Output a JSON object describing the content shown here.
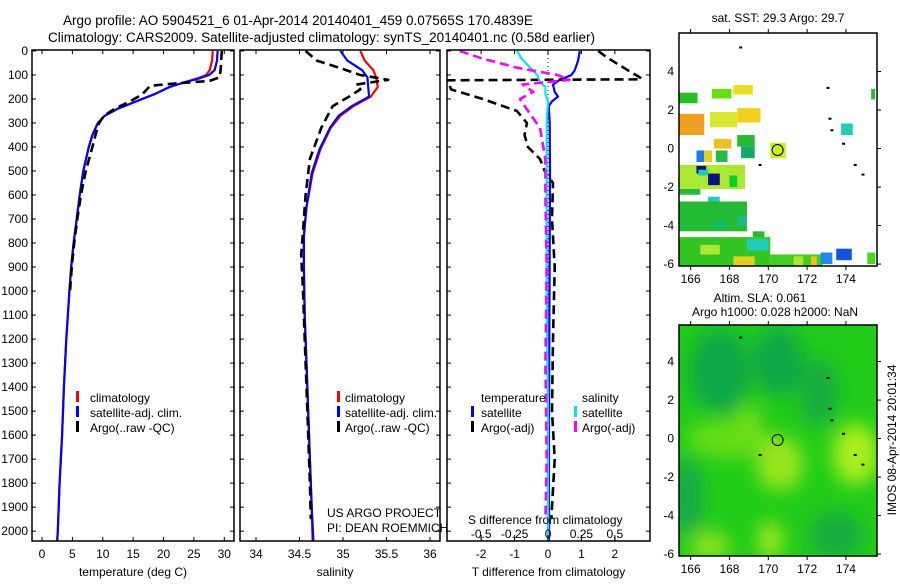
{
  "header": {
    "title_line1": "Argo profile: AO 5904521_6 01-Apr-2014 20140401_459 0.07565S 170.4839E",
    "title_line2": "Climatology: CARS2009. Satellite-adjusted climatology: synTS_20140401.nc (0.58d earlier)"
  },
  "footer_stamp": "IMOS 08-Apr-2014 20:01:34",
  "colors": {
    "climatology": "#ff0000",
    "satellite": "#0000ff",
    "argo": "#000000",
    "sal_satellite": "#00e5ee",
    "sal_argo": "#ff00ff"
  },
  "chart_data": [
    {
      "type": "line",
      "id": "temperature",
      "xlabel": "temperature (deg C)",
      "ylabel": "",
      "xlim": [
        -1.65,
        31.6
      ],
      "ylim": [
        2041,
        -4
      ],
      "xticks": [
        "0",
        "5",
        "10",
        "15",
        "20",
        "25",
        "30"
      ],
      "xtick_values": [
        0,
        5,
        10,
        15,
        20,
        25,
        30
      ],
      "yticks": [
        "0",
        "100",
        "200",
        "300",
        "400",
        "500",
        "600",
        "700",
        "800",
        "900",
        "1000",
        "1100",
        "1200",
        "1300",
        "1400",
        "1500",
        "1600",
        "1700",
        "1800",
        "1900",
        "2000"
      ],
      "legend": [
        "climatology",
        "satellite-adj. clim.",
        "Argo(..raw -QC)"
      ],
      "series": [
        {
          "name": "climatology",
          "color": "#ff0000",
          "dash": false,
          "depth": [
            0,
            40,
            80,
            100,
            115,
            130,
            150,
            180,
            210,
            240,
            270,
            300,
            350,
            400,
            500,
            600,
            700,
            800,
            900,
            1000,
            1200,
            1400,
            1600,
            1800,
            2000,
            2040
          ],
          "values": [
            28.1,
            28.0,
            27.6,
            27.0,
            25.5,
            23.5,
            21.0,
            18.5,
            15.5,
            12.5,
            10.3,
            9.2,
            8.3,
            7.7,
            6.8,
            6.2,
            5.7,
            5.2,
            4.8,
            4.5,
            4.0,
            3.6,
            3.3,
            2.9,
            2.6,
            2.5
          ]
        },
        {
          "name": "satellite-adj. clim.",
          "color": "#0000ff",
          "dash": false,
          "depth": [
            0,
            40,
            80,
            100,
            115,
            130,
            150,
            180,
            210,
            240,
            270,
            300,
            350,
            400,
            500,
            600,
            700,
            800,
            900,
            1000,
            1200,
            1400,
            1600,
            1800,
            2000,
            2040
          ],
          "values": [
            28.9,
            28.8,
            28.4,
            27.5,
            25.8,
            23.5,
            21.0,
            18.5,
            15.5,
            12.5,
            10.3,
            9.2,
            8.3,
            7.7,
            6.8,
            6.2,
            5.7,
            5.2,
            4.8,
            4.5,
            4.0,
            3.6,
            3.3,
            2.9,
            2.6,
            2.5
          ]
        },
        {
          "name": "Argo(..raw -QC)",
          "color": "#000000",
          "dash": true,
          "depth": [
            0,
            40,
            80,
            110,
            125,
            135,
            145,
            180,
            210,
            240,
            270,
            300,
            350,
            400,
            500,
            600,
            700,
            800,
            900,
            1000
          ],
          "values": [
            29.6,
            29.5,
            29.4,
            29.2,
            27.5,
            22.0,
            17.8,
            16.5,
            14.5,
            12.0,
            10.2,
            9.4,
            8.8,
            8.3,
            7.2,
            6.4,
            5.8,
            5.3,
            4.9,
            4.6
          ]
        }
      ]
    },
    {
      "type": "line",
      "id": "salinity",
      "xlabel": "salinity",
      "xlim": [
        33.816,
        36.115
      ],
      "ylim": [
        2041,
        -4
      ],
      "xticks": [
        "34",
        "34.5",
        "35",
        "35.5",
        "36"
      ],
      "xtick_values": [
        34,
        34.5,
        35,
        35.5,
        36
      ],
      "legend": [
        "climatology",
        "satellite-adj. clim.",
        "Argo(..raw -QC)"
      ],
      "annotation": [
        "US ARGO PROJECT",
        "PI: DEAN ROEMMICH"
      ],
      "series": [
        {
          "name": "climatology",
          "color": "#ff0000",
          "dash": false,
          "depth": [
            0,
            40,
            80,
            110,
            150,
            190,
            230,
            270,
            320,
            410,
            510,
            650,
            770,
            900,
            1100,
            1300,
            1500,
            1700,
            1900,
            2040
          ],
          "values": [
            35.2,
            35.25,
            35.35,
            35.38,
            35.4,
            35.32,
            35.12,
            34.97,
            34.86,
            34.74,
            34.65,
            34.58,
            34.55,
            34.55,
            34.56,
            34.58,
            34.6,
            34.62,
            34.64,
            34.65
          ]
        },
        {
          "name": "satellite-adj. clim.",
          "color": "#0000ff",
          "dash": false,
          "depth": [
            0,
            40,
            80,
            110,
            150,
            190,
            230,
            270,
            320,
            410,
            510,
            650,
            770,
            900,
            1100,
            1300,
            1500,
            1700,
            1900,
            2040
          ],
          "values": [
            34.97,
            35.05,
            35.22,
            35.28,
            35.29,
            35.3,
            35.1,
            34.95,
            34.85,
            34.73,
            34.64,
            34.58,
            34.55,
            34.55,
            34.56,
            34.58,
            34.6,
            34.62,
            34.64,
            34.66
          ]
        },
        {
          "name": "Argo(..raw -QC)",
          "color": "#000000",
          "dash": true,
          "depth": [
            0,
            40,
            72,
            100,
            120,
            140,
            160,
            190,
            230,
            320,
            450,
            600,
            700,
            850,
            1000,
            1200,
            1400,
            1600,
            1800,
            1950
          ],
          "values": [
            34.57,
            34.7,
            34.97,
            35.2,
            35.52,
            35.15,
            35.2,
            35.07,
            34.88,
            34.75,
            34.62,
            34.57,
            34.55,
            34.52,
            34.54,
            34.56,
            34.58,
            34.6,
            34.62,
            34.63
          ]
        }
      ]
    },
    {
      "type": "line",
      "id": "difference",
      "xlabel": "T difference from climatology",
      "xlabel_secondary": "S difference from climatology",
      "xlim": [
        -3.02,
        3.05
      ],
      "xlim_secondary": [
        -0.756,
        0.763
      ],
      "ylim": [
        2041,
        -4
      ],
      "xticks": [
        "-2",
        "-1",
        "0",
        "1",
        "2"
      ],
      "xtick_values": [
        -2,
        -1,
        0,
        1,
        2
      ],
      "xticks_secondary": [
        "-0.5",
        "-0.25",
        "0",
        "0.25",
        "0.5"
      ],
      "xtick_values_secondary": [
        -0.5,
        -0.25,
        0,
        0.25,
        0.5
      ],
      "legend_temperature": {
        "title": "temperature",
        "items": [
          "satellite",
          "Argo(-adj)"
        ]
      },
      "legend_salinity": {
        "title": "salinity",
        "items": [
          "satellite",
          "Argo(-adj)"
        ]
      },
      "series": [
        {
          "name": "T satellite",
          "axis": "T",
          "color": "#0000ff",
          "dash": false,
          "depth": [
            0,
            40,
            80,
            100,
            120,
            140,
            170,
            190,
            210,
            230,
            300,
            500,
            800,
            1200,
            1600,
            2040
          ],
          "values": [
            0.95,
            0.9,
            0.8,
            0.7,
            0.35,
            0.15,
            0.2,
            0.3,
            0.12,
            0.02,
            0.05,
            0.06,
            0.05,
            0.04,
            0.03,
            0.03
          ]
        },
        {
          "name": "T Argo(-adj)",
          "axis": "T",
          "color": "#000000",
          "dash": true,
          "depth": [
            0,
            30,
            60,
            90,
            110,
            118,
            122,
            140,
            160,
            200,
            250,
            300,
            350,
            400,
            450,
            500,
            550,
            700,
            900,
            1200,
            1500,
            1700,
            1950
          ],
          "values": [
            1.5,
            1.8,
            2.15,
            2.5,
            2.75,
            2.8,
            -3.0,
            -2.95,
            -2.9,
            -1.95,
            -0.93,
            -0.63,
            -0.7,
            -0.6,
            -0.24,
            -0.1,
            0.15,
            0.12,
            0.2,
            0.15,
            0.12,
            0.2,
            0.1
          ]
        },
        {
          "name": "S satellite",
          "axis": "S",
          "color": "#00e5ee",
          "dash": false,
          "depth": [
            0,
            30,
            60,
            100,
            130,
            150,
            180,
            210,
            300,
            600,
            1000,
            1500,
            2040
          ],
          "values": [
            -0.23,
            -0.2,
            -0.15,
            -0.08,
            -0.06,
            -0.02,
            -0.02,
            0,
            -0.01,
            -0.01,
            -0.01,
            0,
            0
          ]
        },
        {
          "name": "S Argo(-adj)",
          "axis": "S",
          "color": "#ff00ff",
          "dash": true,
          "depth": [
            0,
            30,
            70,
            100,
            120,
            140,
            170,
            200,
            250,
            320,
            450,
            600,
            900,
            1300,
            1700,
            1950
          ],
          "values": [
            -0.66,
            -0.5,
            -0.23,
            0.07,
            0.16,
            -0.19,
            -0.11,
            -0.21,
            -0.15,
            -0.06,
            -0.02,
            -0.02,
            -0.01,
            -0.02,
            -0.01,
            -0.02
          ]
        }
      ]
    },
    {
      "type": "heatmap",
      "id": "sst_map",
      "title": "sat. SST: 29.3 Argo: 29.7",
      "xlim": [
        165.4,
        175.6
      ],
      "ylim": [
        -6.1,
        6.0
      ],
      "xticks": [
        "166",
        "168",
        "170",
        "172",
        "174"
      ],
      "xtick_values": [
        166,
        168,
        170,
        172,
        174
      ],
      "yticks": [
        "4",
        "2",
        "0",
        "-2",
        "-4",
        "-6"
      ],
      "ytick_values": [
        4,
        2,
        0,
        -2,
        -4,
        -6
      ],
      "argo_position": [
        170.48,
        -0.076
      ],
      "cells": [
        [
          165.4,
          2.35,
          166.35,
          2.9,
          "#22c022"
        ],
        [
          167.1,
          2.6,
          168.1,
          3.1,
          "#66dd11"
        ],
        [
          168.2,
          2.8,
          169.2,
          3.3,
          "#e8e020"
        ],
        [
          165.4,
          0.7,
          166.7,
          1.8,
          "#f0a020"
        ],
        [
          167.0,
          1.1,
          168.4,
          1.9,
          "#d8e830"
        ],
        [
          168.4,
          1.35,
          169.6,
          2.1,
          "#f0d020"
        ],
        [
          167.2,
          0.0,
          168.1,
          0.5,
          "#f0c020"
        ],
        [
          168.4,
          0.1,
          169.3,
          0.7,
          "#22bb33"
        ],
        [
          168.6,
          -0.5,
          169.3,
          0.1,
          "#11aa66"
        ],
        [
          170.1,
          -0.5,
          170.9,
          0.3,
          "#c8f020"
        ],
        [
          166.3,
          -0.7,
          166.7,
          -0.1,
          "#2277ee"
        ],
        [
          166.7,
          -0.7,
          167.1,
          -0.1,
          "#e0d020"
        ],
        [
          167.3,
          -0.7,
          167.9,
          -0.1,
          "#22bb44"
        ],
        [
          165.4,
          -2.1,
          168.8,
          -0.85,
          "#aae833"
        ],
        [
          166.9,
          -1.9,
          167.5,
          -1.3,
          "#101080"
        ],
        [
          166.3,
          -1.3,
          166.8,
          -0.9,
          "#101080"
        ],
        [
          166.4,
          -1.4,
          166.9,
          -1.1,
          "#22ccbb"
        ],
        [
          168.0,
          -2.0,
          168.4,
          -1.4,
          "#11cc22"
        ],
        [
          165.4,
          -2.4,
          166.5,
          -2.1,
          "#22bb44"
        ],
        [
          166.9,
          -3.1,
          167.5,
          -2.5,
          "#22ccbb"
        ],
        [
          165.4,
          -4.3,
          168.9,
          -2.75,
          "#22bb33"
        ],
        [
          168.4,
          -4.0,
          168.9,
          -3.5,
          "#22b880"
        ],
        [
          167.2,
          -4.2,
          167.8,
          -3.7,
          "#11bb66"
        ],
        [
          169.2,
          -4.6,
          169.8,
          -4.3,
          "#22bb33"
        ],
        [
          165.4,
          -6.1,
          170.1,
          -4.6,
          "#33c622"
        ],
        [
          168.9,
          -5.3,
          170.0,
          -4.7,
          "#22ccbb"
        ],
        [
          166.5,
          -5.5,
          167.5,
          -5.0,
          "#aae833"
        ],
        [
          168.2,
          -6.1,
          169.3,
          -5.6,
          "#e0d020"
        ],
        [
          170.1,
          -6.1,
          172.8,
          -5.5,
          "#44cc22"
        ],
        [
          171.3,
          -6.1,
          171.8,
          -5.6,
          "#aae833"
        ],
        [
          172.2,
          -6.1,
          172.5,
          -5.6,
          "#f0c020"
        ],
        [
          172.7,
          -6.0,
          173.3,
          -5.4,
          "#2288ee"
        ],
        [
          173.5,
          -5.8,
          174.3,
          -5.2,
          "#1155dd"
        ],
        [
          175.1,
          -6.0,
          175.5,
          -5.4,
          "#44dd11"
        ],
        [
          173.75,
          0.7,
          174.35,
          1.3,
          "#22ccbb"
        ],
        [
          175.3,
          2.55,
          175.5,
          3.1,
          "#22bb44"
        ]
      ]
    },
    {
      "type": "heatmap",
      "id": "sla_map",
      "title": "Altim. SLA: 0.061",
      "subtitle": "Argo h1000: 0.028 h2000: NaN",
      "xlim": [
        165.4,
        175.6
      ],
      "ylim": [
        -6.1,
        5.9
      ],
      "xticks": [
        "166",
        "168",
        "170",
        "172",
        "174"
      ],
      "xtick_values": [
        166,
        168,
        170,
        172,
        174
      ],
      "yticks": [
        "4",
        "2",
        "0",
        "-2",
        "-4",
        "-6"
      ],
      "ytick_values": [
        4,
        2,
        0,
        -2,
        -4,
        -6
      ],
      "argo_position": [
        170.48,
        -0.076
      ]
    }
  ]
}
